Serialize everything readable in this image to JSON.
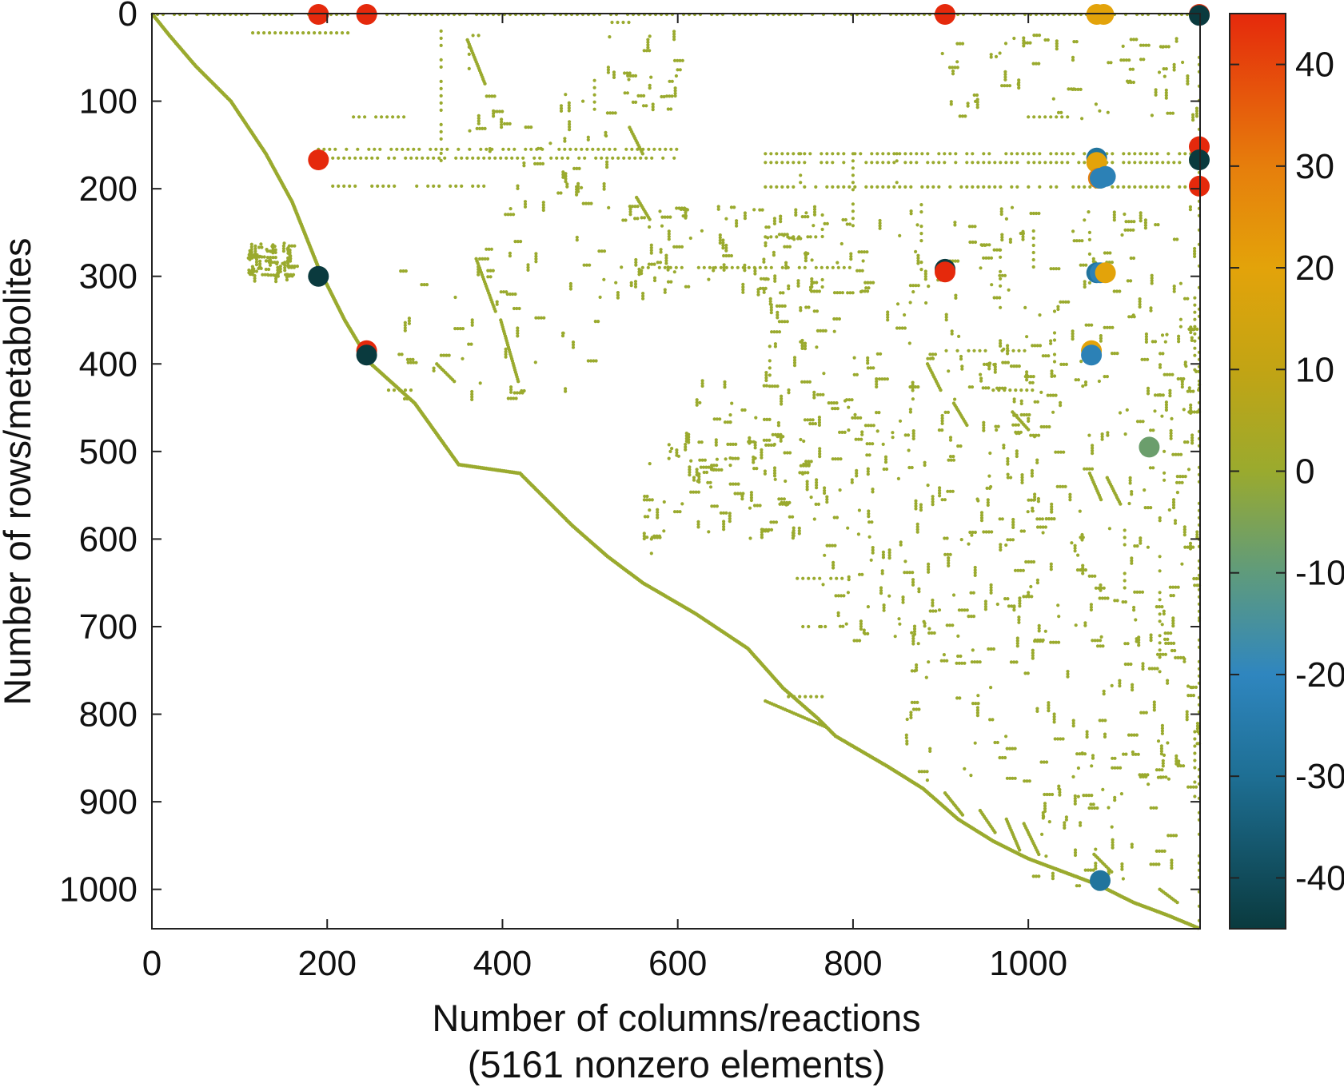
{
  "chart_data": {
    "type": "scatter",
    "subtype": "sparse-matrix-spy-plot",
    "xlabel": "Number of columns/reactions",
    "xlabel_line2": "(5161 nonzero elements)",
    "ylabel": "Number of rows/metabolites",
    "xlim": [
      0,
      1196
    ],
    "ylim": [
      1045,
      0
    ],
    "y_inverted": true,
    "x_ticks": [
      0,
      200,
      400,
      600,
      800,
      1000
    ],
    "y_ticks": [
      0,
      100,
      200,
      300,
      400,
      500,
      600,
      700,
      800,
      900,
      1000
    ],
    "x_tick_labels": [
      "0",
      "200",
      "400",
      "600",
      "800",
      "1000"
    ],
    "y_tick_labels": [
      "0",
      "100",
      "200",
      "300",
      "400",
      "500",
      "600",
      "700",
      "800",
      "900",
      "1000"
    ],
    "colorbar": {
      "range": [
        -45,
        45
      ],
      "ticks": [
        40,
        30,
        20,
        10,
        0,
        -10,
        -20,
        -30,
        -40
      ],
      "tick_labels": [
        "40",
        "30",
        "20",
        "10",
        "0",
        "-10",
        "-20",
        "-30",
        "-40"
      ],
      "stops": [
        {
          "value": -45,
          "color": "#0a3a3e"
        },
        {
          "value": -30,
          "color": "#1e6f94"
        },
        {
          "value": -20,
          "color": "#2f86bf"
        },
        {
          "value": -10,
          "color": "#5f9b7c"
        },
        {
          "value": 0,
          "color": "#9aaa2e"
        },
        {
          "value": 10,
          "color": "#c2a414"
        },
        {
          "value": 20,
          "color": "#e3a30a"
        },
        {
          "value": 30,
          "color": "#e67e0c"
        },
        {
          "value": 45,
          "color": "#e5290c"
        }
      ]
    },
    "diagonal_band": [
      [
        0,
        0
      ],
      [
        20,
        25
      ],
      [
        50,
        60
      ],
      [
        90,
        100
      ],
      [
        130,
        160
      ],
      [
        160,
        215
      ],
      [
        190,
        290
      ],
      [
        220,
        350
      ],
      [
        250,
        400
      ],
      [
        300,
        445
      ],
      [
        350,
        515
      ],
      [
        420,
        525
      ],
      [
        480,
        585
      ],
      [
        520,
        620
      ],
      [
        560,
        650
      ],
      [
        620,
        685
      ],
      [
        680,
        725
      ],
      [
        720,
        770
      ],
      [
        760,
        805
      ],
      [
        780,
        825
      ],
      [
        840,
        860
      ],
      [
        880,
        885
      ],
      [
        920,
        920
      ],
      [
        960,
        945
      ],
      [
        1000,
        965
      ],
      [
        1040,
        980
      ],
      [
        1080,
        995
      ],
      [
        1120,
        1015
      ],
      [
        1160,
        1030
      ],
      [
        1196,
        1045
      ]
    ],
    "diagonal_segments": [
      [
        [
          360,
          30
        ],
        [
          380,
          80
        ]
      ],
      [
        [
          545,
          130
        ],
        [
          560,
          160
        ]
      ],
      [
        [
          553,
          210
        ],
        [
          568,
          235
        ]
      ],
      [
        [
          370,
          280
        ],
        [
          392,
          340
        ]
      ],
      [
        [
          398,
          350
        ],
        [
          418,
          420
        ]
      ],
      [
        [
          325,
          400
        ],
        [
          345,
          420
        ]
      ],
      [
        [
          885,
          400
        ],
        [
          900,
          430
        ]
      ],
      [
        [
          915,
          445
        ],
        [
          930,
          470
        ]
      ],
      [
        [
          982,
          455
        ],
        [
          1000,
          475
        ]
      ],
      [
        [
          1070,
          525
        ],
        [
          1083,
          555
        ]
      ],
      [
        [
          1090,
          530
        ],
        [
          1105,
          560
        ]
      ],
      [
        [
          700,
          785
        ],
        [
          770,
          815
        ]
      ],
      [
        [
          905,
          890
        ],
        [
          925,
          915
        ]
      ],
      [
        [
          945,
          910
        ],
        [
          962,
          935
        ]
      ],
      [
        [
          975,
          920
        ],
        [
          990,
          955
        ]
      ],
      [
        [
          995,
          925
        ],
        [
          1012,
          960
        ]
      ],
      [
        [
          1075,
          960
        ],
        [
          1095,
          980
        ]
      ],
      [
        [
          1150,
          1000
        ],
        [
          1170,
          1015
        ]
      ]
    ],
    "h_bands": [
      [
        0,
        0,
        1196
      ],
      [
        22,
        115,
        230
      ],
      [
        25,
        360,
        385
      ],
      [
        10,
        525,
        560
      ],
      [
        155,
        190,
        600
      ],
      [
        160,
        700,
        1196
      ],
      [
        165,
        200,
        600
      ],
      [
        170,
        700,
        1196
      ],
      [
        198,
        700,
        1196
      ],
      [
        197,
        200,
        380
      ],
      [
        255,
        700,
        760
      ],
      [
        290,
        560,
        800
      ],
      [
        385,
        900,
        1000
      ],
      [
        430,
        960,
        1010
      ],
      [
        645,
        730,
        800
      ],
      [
        700,
        730,
        770
      ],
      [
        780,
        720,
        770
      ],
      [
        118,
        230,
        290
      ],
      [
        430,
        270,
        300
      ],
      [
        118,
        1000,
        1050
      ]
    ],
    "v_bands": [
      [
        330,
        20,
        170
      ],
      [
        362,
        30,
        70
      ],
      [
        505,
        60,
        110
      ],
      [
        740,
        160,
        200
      ],
      [
        765,
        230,
        320
      ],
      [
        800,
        160,
        250
      ],
      [
        850,
        160,
        200
      ],
      [
        878,
        210,
        300
      ],
      [
        968,
        270,
        340
      ],
      [
        1006,
        240,
        290
      ],
      [
        1030,
        340,
        420
      ],
      [
        1070,
        250,
        310
      ],
      [
        1110,
        590,
        690
      ],
      [
        1150,
        620,
        760
      ],
      [
        1190,
        300,
        420
      ],
      [
        1190,
        820,
        900
      ],
      [
        1155,
        500,
        560
      ],
      [
        1174,
        300,
        360
      ],
      [
        705,
        380,
        420
      ],
      [
        660,
        450,
        520
      ],
      [
        570,
        600,
        640
      ],
      [
        1195,
        50,
        1045
      ]
    ],
    "scatter_regions": [
      [
        110,
        160,
        300,
        260,
        60
      ],
      [
        360,
        520,
        90,
        230,
        40
      ],
      [
        520,
        760,
        220,
        320,
        80
      ],
      [
        700,
        1196,
        220,
        400,
        160
      ],
      [
        600,
        1196,
        400,
        560,
        220
      ],
      [
        760,
        1196,
        560,
        720,
        160
      ],
      [
        860,
        1196,
        720,
        880,
        80
      ],
      [
        1000,
        1196,
        840,
        1000,
        60
      ],
      [
        520,
        600,
        20,
        110,
        25
      ],
      [
        900,
        1196,
        20,
        120,
        60
      ],
      [
        280,
        520,
        250,
        440,
        50
      ],
      [
        560,
        760,
        480,
        600,
        70
      ]
    ],
    "large_points": [
      {
        "x": 190,
        "y": 0,
        "value": 45
      },
      {
        "x": 245,
        "y": 0,
        "value": 45
      },
      {
        "x": 905,
        "y": 0,
        "value": 45
      },
      {
        "x": 1078,
        "y": 0,
        "value": 20
      },
      {
        "x": 1086,
        "y": 0,
        "value": 20
      },
      {
        "x": 1196,
        "y": 0,
        "value": 44
      },
      {
        "x": 1196,
        "y": 2,
        "value": -45
      },
      {
        "x": 190,
        "y": 167,
        "value": 45
      },
      {
        "x": 1196,
        "y": 152,
        "value": 45
      },
      {
        "x": 1196,
        "y": 167,
        "value": -45
      },
      {
        "x": 1196,
        "y": 197,
        "value": 45
      },
      {
        "x": 1078,
        "y": 165,
        "value": -28
      },
      {
        "x": 1078,
        "y": 170,
        "value": 20
      },
      {
        "x": 1080,
        "y": 188,
        "value": 30
      },
      {
        "x": 1082,
        "y": 188,
        "value": -22
      },
      {
        "x": 1088,
        "y": 186,
        "value": -22
      },
      {
        "x": 190,
        "y": 300,
        "value": -45
      },
      {
        "x": 905,
        "y": 292,
        "value": -45
      },
      {
        "x": 905,
        "y": 295,
        "value": 45
      },
      {
        "x": 1078,
        "y": 296,
        "value": -28
      },
      {
        "x": 1082,
        "y": 296,
        "value": -22
      },
      {
        "x": 1088,
        "y": 296,
        "value": 20
      },
      {
        "x": 1072,
        "y": 385,
        "value": 20
      },
      {
        "x": 1072,
        "y": 390,
        "value": -22
      },
      {
        "x": 245,
        "y": 385,
        "value": 45
      },
      {
        "x": 245,
        "y": 390,
        "value": -45
      },
      {
        "x": 1082,
        "y": 990,
        "value": -28
      },
      {
        "x": 1138,
        "y": 495,
        "value": -8
      }
    ]
  }
}
